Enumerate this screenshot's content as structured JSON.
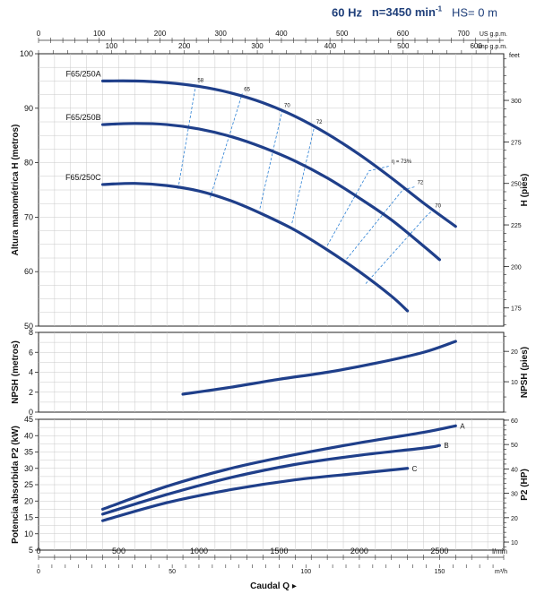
{
  "header": {
    "freq": "60 Hz",
    "speed_prefix": "n=3450 min",
    "speed_sup": "-1",
    "hs": "HS= 0 m"
  },
  "top_axes": {
    "us_gpm": {
      "label": "US g.p.m.",
      "ticks": [
        0,
        100,
        200,
        300,
        400,
        500,
        600,
        700
      ]
    },
    "imp_gpm": {
      "label": "Imp g.p.m.",
      "ticks": [
        100,
        200,
        300,
        400,
        500,
        600
      ]
    }
  },
  "bottom_axes": {
    "lmin": {
      "label": "l/min",
      "ticks": [
        0,
        500,
        1000,
        1500,
        2000,
        2500
      ]
    },
    "m3h": {
      "label": "m³/h",
      "ticks": [
        0,
        50,
        100,
        150
      ]
    },
    "xlabel": "Caudal Q"
  },
  "chart_data": [
    {
      "type": "line",
      "id": "head",
      "ylabel": "Altura manométrica H (metros)",
      "ylabel_right": "H  (pies)",
      "right_unit": "feet",
      "xlim": [
        0,
        2900
      ],
      "ylim": [
        50,
        100
      ],
      "yticks": [
        50,
        60,
        70,
        80,
        90,
        100
      ],
      "yticks_right": [
        175,
        200,
        225,
        250,
        275,
        300
      ],
      "grid": true,
      "series": [
        {
          "name": "F65/250A",
          "x": [
            400,
            600,
            800,
            1000,
            1200,
            1400,
            1600,
            1800,
            2000,
            2200,
            2400,
            2600
          ],
          "y": [
            95,
            95,
            94.7,
            94,
            92.8,
            91,
            88.5,
            85.3,
            81.5,
            77.2,
            72.6,
            68.3
          ]
        },
        {
          "name": "F65/250B",
          "x": [
            400,
            600,
            800,
            1000,
            1200,
            1400,
            1600,
            1800,
            2000,
            2200,
            2400,
            2500
          ],
          "y": [
            87,
            87.2,
            87,
            86.2,
            84.8,
            82.8,
            80.3,
            77.2,
            73.5,
            69.5,
            64.7,
            62.2
          ]
        },
        {
          "name": "F65/250C",
          "x": [
            400,
            600,
            800,
            1000,
            1200,
            1400,
            1600,
            1800,
            2000,
            2200,
            2300
          ],
          "y": [
            76,
            76.2,
            75.8,
            74.8,
            73,
            70.5,
            67.6,
            64,
            60,
            55.5,
            52.8
          ]
        }
      ],
      "efficiency_curves": [
        {
          "label": "58",
          "x": [
            870,
            980
          ],
          "y": [
            75.2,
            94.3
          ]
        },
        {
          "label": "65",
          "x": [
            1070,
            1270
          ],
          "y": [
            73.6,
            92.7
          ]
        },
        {
          "label": "70",
          "x": [
            1380,
            1520
          ],
          "y": [
            71.6,
            89.7
          ]
        },
        {
          "label": "72",
          "x": [
            1580,
            1720
          ],
          "y": [
            68.9,
            86.7
          ]
        },
        {
          "label": "η = 73%",
          "x": [
            1800,
            2060,
            2190
          ],
          "y": [
            64.8,
            78.5,
            79.4
          ]
        },
        {
          "label": "72",
          "x": [
            1920,
            2270,
            2350
          ],
          "y": [
            62.3,
            75.0,
            75.6
          ]
        },
        {
          "label": "70",
          "x": [
            2040,
            2420,
            2460
          ],
          "y": [
            57.8,
            70.3,
            71.3
          ]
        }
      ]
    },
    {
      "type": "line",
      "id": "npsh",
      "ylabel": "NPSH  (metros)",
      "ylabel_right": "NPSH  (pies)",
      "xlim": [
        0,
        2900
      ],
      "ylim": [
        0,
        8
      ],
      "yticks": [
        0,
        2,
        4,
        6,
        8
      ],
      "yticks_right": [
        10,
        20
      ],
      "grid": true,
      "series": [
        {
          "x": [
            900,
            1200,
            1500,
            1800,
            2100,
            2400,
            2600
          ],
          "y": [
            1.8,
            2.5,
            3.3,
            4.0,
            4.9,
            6.0,
            7.1
          ]
        }
      ]
    },
    {
      "type": "line",
      "id": "power",
      "ylabel": "Potencia absorbida P2 (kW)",
      "ylabel_right": "P2 (HP)",
      "xlim": [
        0,
        2900
      ],
      "ylim": [
        5,
        45
      ],
      "yticks": [
        5,
        10,
        15,
        20,
        25,
        30,
        35,
        40,
        45
      ],
      "yticks_right": [
        10,
        20,
        30,
        40,
        50,
        60
      ],
      "grid": true,
      "series": [
        {
          "name": "A",
          "x": [
            400,
            800,
            1200,
            1600,
            2000,
            2400,
            2600
          ],
          "y": [
            17.5,
            24.5,
            30.0,
            34.2,
            37.8,
            41.0,
            43.0
          ]
        },
        {
          "name": "B",
          "x": [
            400,
            800,
            1200,
            1600,
            2000,
            2400,
            2500
          ],
          "y": [
            16.0,
            22.0,
            27.2,
            31.2,
            34.0,
            36.2,
            37.0
          ]
        },
        {
          "name": "C",
          "x": [
            400,
            800,
            1200,
            1600,
            2000,
            2300
          ],
          "y": [
            14.0,
            19.5,
            23.5,
            26.5,
            28.5,
            30.0
          ]
        }
      ]
    }
  ]
}
